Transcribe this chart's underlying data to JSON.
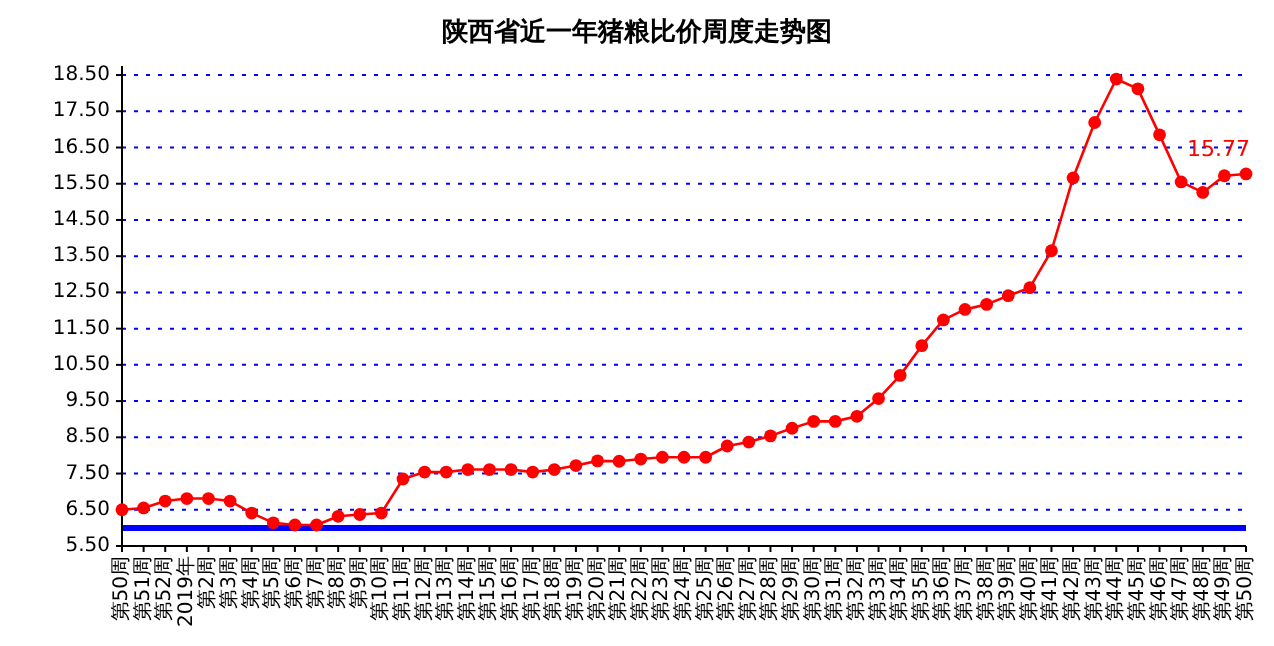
{
  "chart_data": {
    "type": "line",
    "title": "陕西省近一年猪粮比价周度走势图",
    "categories": [
      "第50周",
      "第51周",
      "第52周",
      "2019年",
      "第2周",
      "第3周",
      "第4周",
      "第5周",
      "第6周",
      "第7周",
      "第8周",
      "第9周",
      "第10周",
      "第11周",
      "第12周",
      "第13周",
      "第14周",
      "第15周",
      "第16周",
      "第17周",
      "第18周",
      "第19周",
      "第20周",
      "第21周",
      "第22周",
      "第23周",
      "第24周",
      "第25周",
      "第26周",
      "第27周",
      "第28周",
      "第29周",
      "第30周",
      "第31周",
      "第32周",
      "第33周",
      "第34周",
      "第35周",
      "第36周",
      "第37周",
      "第38周",
      "第39周",
      "第40周",
      "第41周",
      "第42周",
      "第43周",
      "第44周",
      "第45周",
      "第46周",
      "第47周",
      "第48周",
      "第49周",
      "第50周"
    ],
    "series": [
      {
        "color": "#ff0000",
        "values": [
          6.5,
          6.55,
          6.74,
          6.81,
          6.81,
          6.74,
          6.41,
          6.14,
          6.08,
          6.08,
          6.32,
          6.37,
          6.41,
          7.35,
          7.54,
          7.54,
          7.61,
          7.61,
          7.61,
          7.54,
          7.61,
          7.72,
          7.85,
          7.84,
          7.9,
          7.95,
          7.95,
          7.95,
          8.26,
          8.37,
          8.54,
          8.75,
          8.94,
          8.94,
          9.08,
          9.57,
          10.21,
          11.03,
          11.74,
          12.03,
          12.17,
          12.41,
          12.63,
          13.65,
          15.66,
          17.19,
          18.39,
          18.12,
          16.85,
          15.55,
          15.26,
          15.72,
          15.77
        ],
        "value_labels": [
          null,
          null,
          null,
          null,
          null,
          null,
          null,
          null,
          null,
          null,
          null,
          null,
          null,
          null,
          null,
          null,
          null,
          null,
          null,
          null,
          null,
          null,
          null,
          null,
          null,
          null,
          null,
          null,
          null,
          null,
          null,
          null,
          null,
          null,
          null,
          null,
          null,
          null,
          null,
          null,
          null,
          null,
          null,
          null,
          null,
          null,
          null,
          null,
          null,
          null,
          null,
          null,
          "15.77"
        ]
      }
    ],
    "ylim": [
      5.5,
      18.75
    ],
    "yticks": [
      {
        "value": 5.5,
        "label": "5.50"
      },
      {
        "value": 6.5,
        "label": "6.50"
      },
      {
        "value": 7.5,
        "label": "7.50"
      },
      {
        "value": 8.5,
        "label": "8.50"
      },
      {
        "value": 9.5,
        "label": "9.50"
      },
      {
        "value": 10.5,
        "label": "10.50"
      },
      {
        "value": 11.5,
        "label": "11.50"
      },
      {
        "value": 12.5,
        "label": "12.50"
      },
      {
        "value": 13.5,
        "label": "13.50"
      },
      {
        "value": 14.5,
        "label": "14.50"
      },
      {
        "value": 15.5,
        "label": "15.50"
      },
      {
        "value": 16.5,
        "label": "16.50"
      },
      {
        "value": 17.5,
        "label": "17.50"
      },
      {
        "value": 18.5,
        "label": "18.50"
      }
    ],
    "ref_lines": [
      {
        "axis": "y",
        "value": 6.0,
        "color": "#0000ff",
        "line_style": "solid"
      }
    ],
    "grid": "y",
    "marker": "circle",
    "line_style": "solid"
  }
}
